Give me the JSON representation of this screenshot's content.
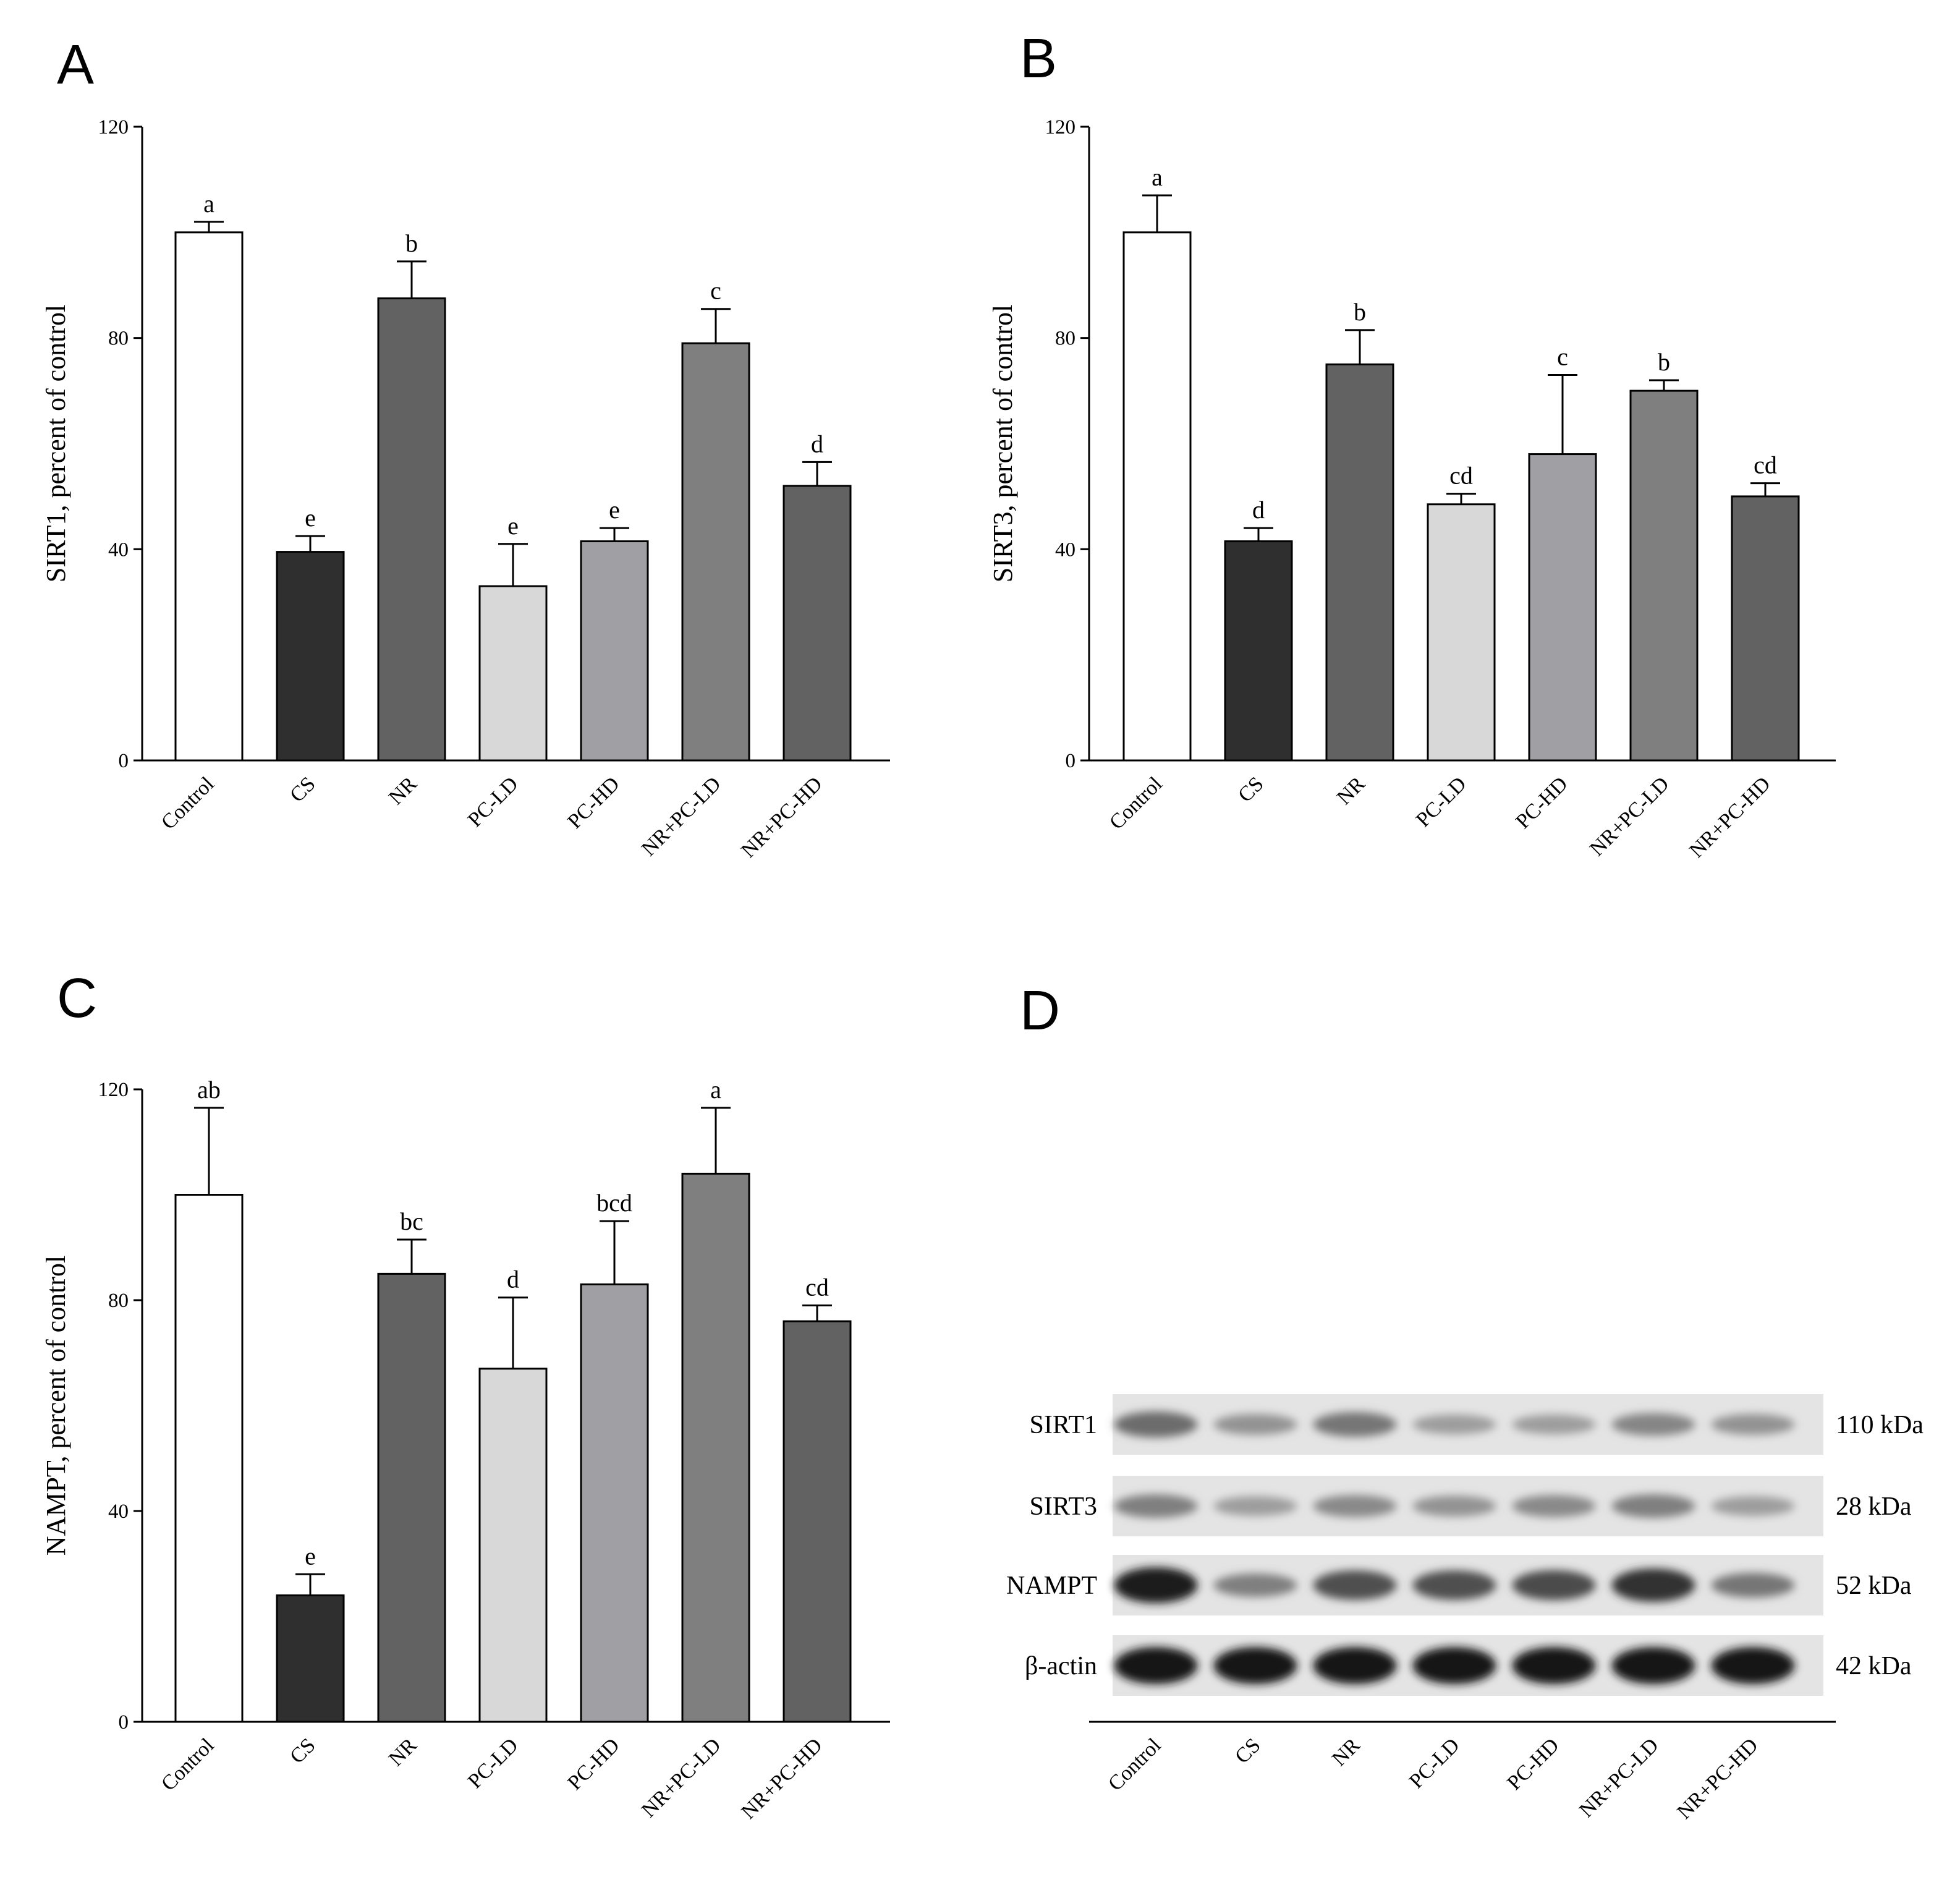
{
  "chart_data": [
    {
      "panel": "A",
      "type": "bar",
      "title": "",
      "xlabel": "",
      "ylabel": "SIRT1, percent of control",
      "ylim": [
        0,
        120
      ],
      "yticks": [
        "0",
        "40",
        "80",
        "120"
      ],
      "categories": [
        "Control",
        "CS",
        "NR",
        "PC-LD",
        "PC-HD",
        "NR+PC-LD",
        "NR+PC-HD"
      ],
      "values": [
        100,
        39.5,
        87.5,
        33,
        41.5,
        79,
        52
      ],
      "errors": [
        2,
        3,
        7,
        8,
        2.5,
        6.5,
        4.5
      ],
      "labels": [
        "a",
        "e",
        "b",
        "e",
        "e",
        "c",
        "d"
      ],
      "colors": [
        "#ffffff",
        "#2f2f2f",
        "#626262",
        "#d8d8d8",
        "#a0a0a4",
        "#7f7f7f",
        "#626262"
      ]
    },
    {
      "panel": "B",
      "type": "bar",
      "title": "",
      "xlabel": "",
      "ylabel": "SIRT3, percent of control",
      "ylim": [
        0,
        120
      ],
      "yticks": [
        "0",
        "40",
        "80",
        "120"
      ],
      "categories": [
        "Control",
        "CS",
        "NR",
        "PC-LD",
        "PC-HD",
        "NR+PC-LD",
        "NR+PC-HD"
      ],
      "values": [
        100,
        41.5,
        75,
        48.5,
        58,
        70,
        50
      ],
      "errors": [
        7,
        2.5,
        6.5,
        2,
        15,
        2,
        2.5
      ],
      "labels": [
        "a",
        "d",
        "b",
        "cd",
        "c",
        "b",
        "cd"
      ],
      "colors": [
        "#ffffff",
        "#2f2f2f",
        "#626262",
        "#d8d8d8",
        "#a0a0a4",
        "#7f7f7f",
        "#626262"
      ]
    },
    {
      "panel": "C",
      "type": "bar",
      "title": "",
      "xlabel": "",
      "ylabel": "NAMPT, percent of control",
      "ylim": [
        0,
        120
      ],
      "yticks": [
        "0",
        "40",
        "80",
        "120"
      ],
      "categories": [
        "Control",
        "CS",
        "NR",
        "PC-LD",
        "PC-HD",
        "NR+PC-LD",
        "NR+PC-HD"
      ],
      "values": [
        100,
        24,
        85,
        67,
        83,
        104,
        76
      ],
      "errors": [
        16.5,
        4,
        6.5,
        13.5,
        12,
        12.5,
        3
      ],
      "labels": [
        "ab",
        "e",
        "bc",
        "d",
        "bcd",
        "a",
        "cd"
      ],
      "colors": [
        "#ffffff",
        "#2f2f2f",
        "#626262",
        "#d8d8d8",
        "#a0a0a4",
        "#7f7f7f",
        "#626262"
      ]
    }
  ],
  "panel_d": {
    "letter": "D",
    "rows": [
      {
        "protein": "SIRT1",
        "size": "110 kDa",
        "intensity": [
          0.55,
          0.35,
          0.5,
          0.3,
          0.3,
          0.42,
          0.35
        ]
      },
      {
        "protein": "SIRT3",
        "size": "28 kDa",
        "intensity": [
          0.45,
          0.3,
          0.4,
          0.35,
          0.4,
          0.45,
          0.3
        ]
      },
      {
        "protein": "NAMPT",
        "size": "52 kDa",
        "intensity": [
          0.95,
          0.45,
          0.7,
          0.7,
          0.72,
          0.85,
          0.5
        ]
      },
      {
        "protein": "β-actin",
        "size": "42 kDa",
        "intensity": [
          1,
          1,
          1,
          1,
          1,
          1,
          1
        ]
      }
    ],
    "categories": [
      "Control",
      "CS",
      "NR",
      "PC-LD",
      "PC-HD",
      "NR+PC-LD",
      "NR+PC-HD"
    ]
  }
}
